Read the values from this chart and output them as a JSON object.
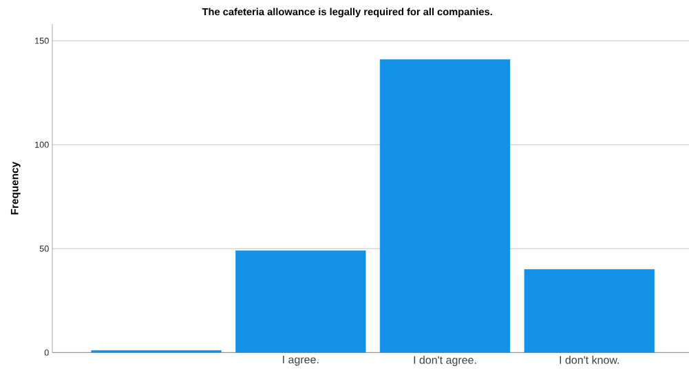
{
  "chart_data": {
    "type": "bar",
    "title": "The cafeteria allowance is legally required for all companies.",
    "ylabel": "Frequency",
    "categories": [
      null,
      "I agree.",
      "I don't agree.",
      "I don't know."
    ],
    "values": [
      1,
      49,
      141,
      40
    ],
    "color": "#1391e6",
    "ylim": [
      0,
      158
    ],
    "yticks": [
      0,
      50,
      100,
      150
    ],
    "grid": "y"
  }
}
